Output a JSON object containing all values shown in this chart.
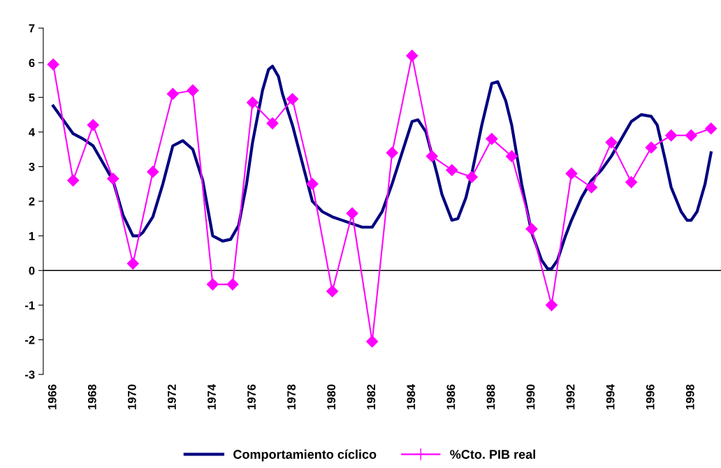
{
  "chart_data": {
    "type": "line",
    "xlim": [
      1965.5,
      1999.5
    ],
    "xticks": [
      1966,
      1968,
      1970,
      1972,
      1974,
      1976,
      1978,
      1980,
      1982,
      1984,
      1986,
      1988,
      1990,
      1992,
      1994,
      1996,
      1998
    ],
    "ylim": [
      -3,
      7
    ],
    "yticks": [
      -3,
      -2,
      -1,
      0,
      1,
      2,
      3,
      4,
      5,
      6,
      7
    ],
    "grid": false,
    "legend": "bottom",
    "ref_lines": [
      {
        "axis": "y",
        "value": 0,
        "color": "#000000"
      }
    ],
    "series": [
      {
        "name": "Comportamiento cíclico",
        "color": "#000080",
        "marker": "none",
        "x": [
          1966,
          1967,
          1967.5,
          1968,
          1968.5,
          1969,
          1969.5,
          1970,
          1970.3,
          1970.5,
          1971,
          1971.5,
          1972,
          1972.5,
          1973,
          1973.5,
          1974,
          1974.5,
          1974.9,
          1975.3,
          1975.7,
          1976,
          1976.5,
          1976.8,
          1977,
          1977.3,
          1977.5,
          1978,
          1978.5,
          1979,
          1979.5,
          1980,
          1980.5,
          1981,
          1981.5,
          1982,
          1982.5,
          1983,
          1983.5,
          1984,
          1984.3,
          1984.7,
          1985.25,
          1985.5,
          1986,
          1986.3,
          1986.7,
          1987,
          1987.5,
          1988,
          1988.3,
          1988.7,
          1989,
          1989.5,
          1990,
          1990.5,
          1990.8,
          1991,
          1991.3,
          1991.7,
          1992,
          1992.5,
          1993,
          1993.5,
          1994,
          1994.5,
          1995,
          1995.5,
          1996,
          1996.3,
          1996.7,
          1997,
          1997.5,
          1997.8,
          1998,
          1998.3,
          1998.7,
          1999
        ],
        "values": [
          4.75,
          3.95,
          3.8,
          3.6,
          3.1,
          2.6,
          1.6,
          1.0,
          1.0,
          1.1,
          1.55,
          2.5,
          3.6,
          3.75,
          3.5,
          2.6,
          1.0,
          0.85,
          0.9,
          1.3,
          2.5,
          3.7,
          5.2,
          5.8,
          5.9,
          5.6,
          5.1,
          4.2,
          3.1,
          2.0,
          1.7,
          1.55,
          1.45,
          1.35,
          1.25,
          1.25,
          1.7,
          2.5,
          3.4,
          4.3,
          4.35,
          4.0,
          2.8,
          2.2,
          1.45,
          1.5,
          2.1,
          2.8,
          4.2,
          5.4,
          5.45,
          4.9,
          4.2,
          2.5,
          1.1,
          0.3,
          0.05,
          0.05,
          0.3,
          1.0,
          1.45,
          2.1,
          2.6,
          2.9,
          3.3,
          3.8,
          4.3,
          4.5,
          4.45,
          4.2,
          3.2,
          2.4,
          1.7,
          1.45,
          1.45,
          1.7,
          2.5,
          3.4
        ]
      },
      {
        "name": "%Cto. PIB real",
        "color": "#ff00ff",
        "marker": "diamond",
        "x": [
          1966,
          1967,
          1968,
          1969,
          1970,
          1971,
          1972,
          1973,
          1974,
          1975,
          1976,
          1977,
          1978,
          1979,
          1980,
          1981,
          1982,
          1983,
          1984,
          1985,
          1986,
          1987,
          1988,
          1989,
          1990,
          1991,
          1992,
          1993,
          1994,
          1995,
          1996,
          1997,
          1998,
          1999
        ],
        "values": [
          5.95,
          2.6,
          4.2,
          2.65,
          0.2,
          2.85,
          5.1,
          5.2,
          -0.4,
          -0.4,
          4.85,
          4.25,
          4.95,
          2.5,
          -0.6,
          1.65,
          -2.05,
          3.4,
          6.2,
          3.3,
          2.9,
          2.7,
          3.8,
          3.3,
          1.2,
          -1.0,
          2.8,
          2.4,
          3.7,
          2.55,
          3.55,
          3.9,
          3.9,
          4.1
        ]
      }
    ]
  }
}
